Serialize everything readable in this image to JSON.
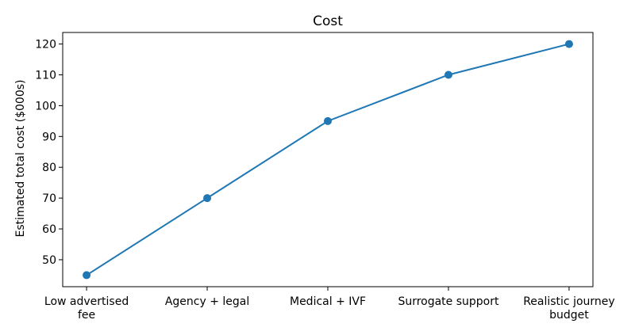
{
  "chart_data": {
    "type": "line",
    "title": "Cost",
    "xlabel": "",
    "ylabel": "Estimated total cost ($000s)",
    "categories": [
      [
        "Low advertised",
        "fee"
      ],
      [
        "Agency + legal"
      ],
      [
        "Medical + IVF"
      ],
      [
        "Surrogate support"
      ],
      [
        "Realistic journey",
        "budget"
      ]
    ],
    "values": [
      45,
      70,
      95,
      110,
      120
    ],
    "ylim": [
      41.25,
      123.75
    ],
    "yticks": [
      50,
      60,
      70,
      80,
      90,
      100,
      110,
      120
    ],
    "grid": false,
    "color": "#1f77b4"
  }
}
